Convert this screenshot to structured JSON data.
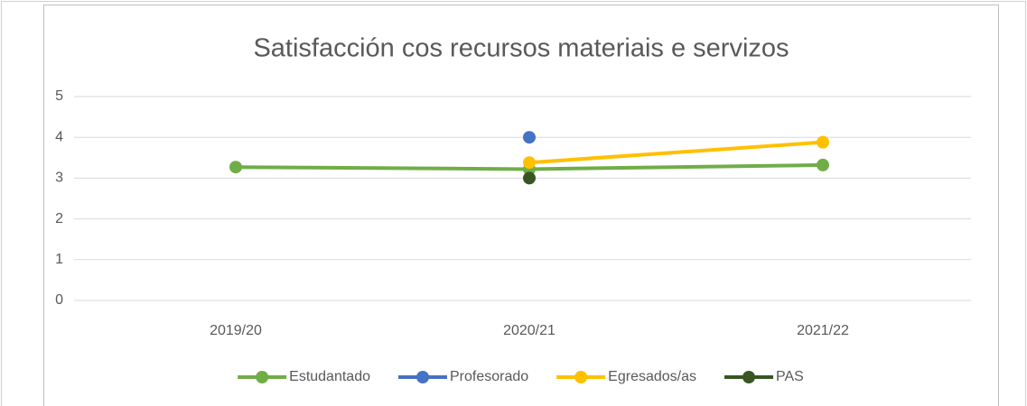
{
  "chart_data": {
    "type": "line",
    "title": "Satisfacción cos recursos materiais e servizos",
    "categories": [
      "2019/20",
      "2020/21",
      "2021/22"
    ],
    "series": [
      {
        "name": "Estudantado",
        "color": "#70ad47",
        "values": [
          3.27,
          3.22,
          3.32
        ]
      },
      {
        "name": "Profesorado",
        "color": "#4472c4",
        "values": [
          null,
          4.0,
          null
        ]
      },
      {
        "name": "Egresados/as",
        "color": "#ffc000",
        "values": [
          null,
          3.38,
          3.88
        ]
      },
      {
        "name": "PAS",
        "color": "#375623",
        "values": [
          null,
          3.0,
          null
        ]
      }
    ],
    "ylim": [
      0,
      5
    ],
    "yticks": [
      0,
      1,
      2,
      3,
      4,
      5
    ],
    "grid": true,
    "legend": "bottom"
  }
}
